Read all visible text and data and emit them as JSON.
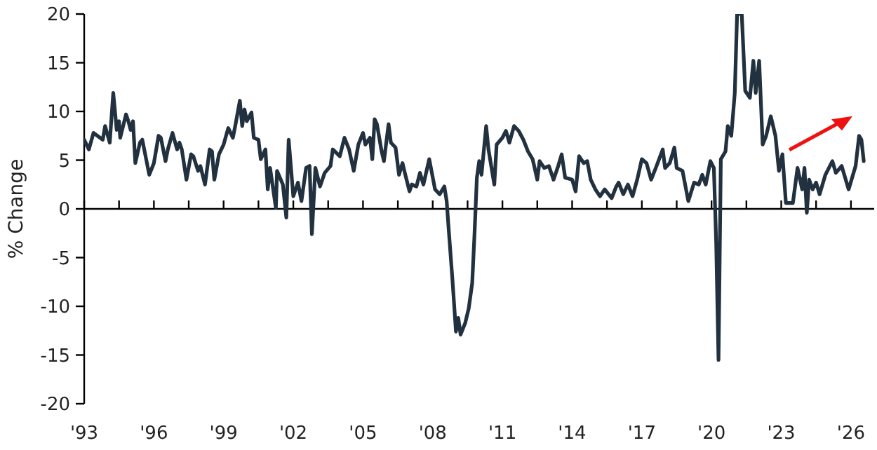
{
  "chart_data": {
    "type": "line",
    "ylabel": "% Change",
    "xlim": [
      1993,
      2027
    ],
    "ylim": [
      -20,
      20
    ],
    "yticks": [
      -20,
      -15,
      -10,
      -5,
      0,
      5,
      10,
      15,
      20
    ],
    "xticks": [
      {
        "value": 1993,
        "label": "'93"
      },
      {
        "value": 1994.5,
        "label": null
      },
      {
        "value": 1996,
        "label": "'96"
      },
      {
        "value": 1997.5,
        "label": null
      },
      {
        "value": 1999,
        "label": "'99"
      },
      {
        "value": 2000.5,
        "label": null
      },
      {
        "value": 2002,
        "label": "'02"
      },
      {
        "value": 2003.5,
        "label": null
      },
      {
        "value": 2005,
        "label": "'05"
      },
      {
        "value": 2006.5,
        "label": null
      },
      {
        "value": 2008,
        "label": "'08"
      },
      {
        "value": 2009.5,
        "label": null
      },
      {
        "value": 2011,
        "label": "'11"
      },
      {
        "value": 2012.5,
        "label": null
      },
      {
        "value": 2014,
        "label": "'14"
      },
      {
        "value": 2015.5,
        "label": null
      },
      {
        "value": 2017,
        "label": "'17"
      },
      {
        "value": 2018.5,
        "label": null
      },
      {
        "value": 2020,
        "label": "'20"
      },
      {
        "value": 2021.5,
        "label": null
      },
      {
        "value": 2023,
        "label": "'23"
      },
      {
        "value": 2024.5,
        "label": null
      },
      {
        "value": 2026,
        "label": "'26"
      }
    ],
    "marker": "none",
    "line_style": "solid",
    "series": [
      {
        "color": "#22313f",
        "x": [
          1993.0,
          1993.2,
          1993.4,
          1993.8,
          1993.9,
          1994.1,
          1994.25,
          1994.4,
          1994.5,
          1994.55,
          1994.8,
          1994.9,
          1995.0,
          1995.1,
          1995.2,
          1995.4,
          1995.5,
          1995.8,
          1996.0,
          1996.2,
          1996.3,
          1996.5,
          1996.6,
          1996.8,
          1997.0,
          1997.1,
          1997.2,
          1997.4,
          1997.6,
          1997.7,
          1997.9,
          1998.0,
          1998.2,
          1998.4,
          1998.5,
          1998.6,
          1998.8,
          1999.0,
          1999.2,
          1999.3,
          1999.4,
          1999.5,
          1999.7,
          1999.8,
          1999.9,
          2000.0,
          2000.2,
          2000.3,
          2000.5,
          2000.6,
          2000.8,
          2000.9,
          2001.0,
          2001.25,
          2001.3,
          2001.55,
          2001.7,
          2001.8,
          2002.0,
          2002.2,
          2002.35,
          2002.55,
          2002.7,
          2002.8,
          2002.95,
          2003.15,
          2003.35,
          2003.6,
          2003.7,
          2004.0,
          2004.2,
          2004.4,
          2004.6,
          2004.8,
          2005.0,
          2005.1,
          2005.3,
          2005.4,
          2005.5,
          2005.6,
          2005.8,
          2005.9,
          2006.1,
          2006.2,
          2006.4,
          2006.55,
          2006.7,
          2006.8,
          2007.0,
          2007.1,
          2007.3,
          2007.45,
          2007.6,
          2007.85,
          2008.1,
          2008.3,
          2008.5,
          2008.6,
          2008.7,
          2008.85,
          2009.0,
          2009.1,
          2009.2,
          2009.4,
          2009.55,
          2009.7,
          2009.8,
          2009.9,
          2010.0,
          2010.1,
          2010.3,
          2010.4,
          2010.65,
          2010.75,
          2011.0,
          2011.15,
          2011.3,
          2011.5,
          2011.7,
          2011.9,
          2012.1,
          2012.3,
          2012.5,
          2012.6,
          2012.8,
          2013.0,
          2013.2,
          2013.4,
          2013.55,
          2013.7,
          2014.0,
          2014.15,
          2014.3,
          2014.5,
          2014.65,
          2014.8,
          2015.0,
          2015.2,
          2015.4,
          2015.7,
          2015.9,
          2016.0,
          2016.2,
          2016.4,
          2016.6,
          2016.8,
          2017.0,
          2017.2,
          2017.4,
          2017.6,
          2017.9,
          2018.0,
          2018.2,
          2018.4,
          2018.5,
          2018.75,
          2019.0,
          2019.25,
          2019.45,
          2019.6,
          2019.75,
          2019.95,
          2020.1,
          2020.2,
          2020.3,
          2020.4,
          2020.6,
          2020.7,
          2020.85,
          2021.0,
          2021.1,
          2021.3,
          2021.45,
          2021.65,
          2021.8,
          2021.9,
          2022.05,
          2022.2,
          2022.35,
          2022.55,
          2022.75,
          2022.9,
          2023.05,
          2023.2,
          2023.5,
          2023.7,
          2023.9,
          2024.0,
          2024.1,
          2024.2,
          2024.35,
          2024.5,
          2024.65,
          2024.9,
          2025.2,
          2025.35,
          2025.6,
          2025.9,
          2026.2,
          2026.35,
          2026.45,
          2026.55
        ],
        "values": [
          7.1,
          6.1,
          7.8,
          7.1,
          8.5,
          6.8,
          11.9,
          8.1,
          9.0,
          7.3,
          9.7,
          9.0,
          8.1,
          9.0,
          4.7,
          6.8,
          7.1,
          3.5,
          4.7,
          7.5,
          7.3,
          4.9,
          6.1,
          7.8,
          6.1,
          6.8,
          6.1,
          3.0,
          5.6,
          5.4,
          3.9,
          4.4,
          2.5,
          6.1,
          5.9,
          3.0,
          5.6,
          6.6,
          8.3,
          7.8,
          7.3,
          8.5,
          11.1,
          8.5,
          10.2,
          9.0,
          9.9,
          7.3,
          7.1,
          5.1,
          6.1,
          2.0,
          4.2,
          0.1,
          3.9,
          2.5,
          -0.9,
          7.1,
          1.3,
          2.7,
          0.8,
          4.2,
          4.4,
          -2.6,
          4.2,
          2.3,
          3.7,
          4.4,
          6.1,
          5.4,
          7.3,
          6.1,
          3.9,
          6.6,
          7.8,
          6.6,
          7.3,
          5.1,
          9.2,
          8.7,
          5.9,
          4.9,
          8.7,
          6.8,
          6.3,
          3.5,
          4.7,
          3.7,
          1.8,
          2.5,
          2.3,
          3.7,
          2.5,
          5.1,
          2.0,
          1.5,
          2.3,
          0.8,
          -2.5,
          -7.3,
          -12.6,
          -11.2,
          -12.9,
          -11.7,
          -10.2,
          -7.6,
          -2.5,
          3.2,
          4.9,
          3.5,
          8.5,
          6.1,
          2.5,
          6.6,
          7.3,
          8.0,
          6.8,
          8.5,
          8.0,
          7.1,
          5.9,
          5.1,
          3.0,
          4.9,
          4.2,
          4.4,
          3.0,
          4.4,
          5.6,
          3.2,
          3.0,
          1.8,
          5.4,
          4.7,
          4.9,
          3.0,
          2.0,
          1.3,
          2.0,
          1.1,
          2.3,
          2.7,
          1.5,
          2.5,
          1.3,
          3.0,
          5.1,
          4.7,
          3.0,
          4.2,
          6.1,
          4.2,
          4.7,
          6.3,
          4.2,
          3.9,
          0.8,
          2.7,
          2.5,
          3.5,
          2.5,
          4.9,
          4.2,
          -3.5,
          -15.5,
          5.1,
          5.9,
          8.5,
          7.5,
          11.9,
          20,
          20,
          12.1,
          11.4,
          15.2,
          11.9,
          15.2,
          6.6,
          7.5,
          9.5,
          7.5,
          3.9,
          5.6,
          0.6,
          0.6,
          4.2,
          2.0,
          4.2,
          -0.4,
          3.0,
          2.0,
          2.7,
          1.5,
          3.5,
          4.9,
          3.7,
          4.4,
          2.0,
          4.4,
          7.5,
          7.1,
          4.9
        ]
      }
    ]
  }
}
